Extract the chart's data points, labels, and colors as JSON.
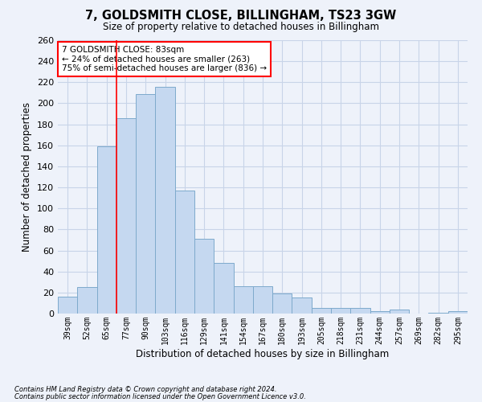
{
  "title": "7, GOLDSMITH CLOSE, BILLINGHAM, TS23 3GW",
  "subtitle": "Size of property relative to detached houses in Billingham",
  "xlabel": "Distribution of detached houses by size in Billingham",
  "ylabel": "Number of detached properties",
  "categories": [
    "39sqm",
    "52sqm",
    "65sqm",
    "77sqm",
    "90sqm",
    "103sqm",
    "116sqm",
    "129sqm",
    "141sqm",
    "154sqm",
    "167sqm",
    "180sqm",
    "193sqm",
    "205sqm",
    "218sqm",
    "231sqm",
    "244sqm",
    "257sqm",
    "269sqm",
    "282sqm",
    "295sqm"
  ],
  "values": [
    16,
    25,
    159,
    186,
    209,
    216,
    117,
    71,
    48,
    26,
    26,
    19,
    15,
    5,
    5,
    5,
    2,
    4,
    0,
    1,
    2
  ],
  "bar_color": "#c5d8f0",
  "bar_edge_color": "#7eaacc",
  "ylim": [
    0,
    260
  ],
  "yticks": [
    0,
    20,
    40,
    60,
    80,
    100,
    120,
    140,
    160,
    180,
    200,
    220,
    240,
    260
  ],
  "annotation_title": "7 GOLDSMITH CLOSE: 83sqm",
  "annotation_line1": "← 24% of detached houses are smaller (263)",
  "annotation_line2": "75% of semi-detached houses are larger (836) →",
  "vline_x_index": 3,
  "footnote1": "Contains HM Land Registry data © Crown copyright and database right 2024.",
  "footnote2": "Contains public sector information licensed under the Open Government Licence v3.0.",
  "background_color": "#eef2fa",
  "plot_bg_color": "#eef2fa",
  "grid_color": "#c8d4e8"
}
